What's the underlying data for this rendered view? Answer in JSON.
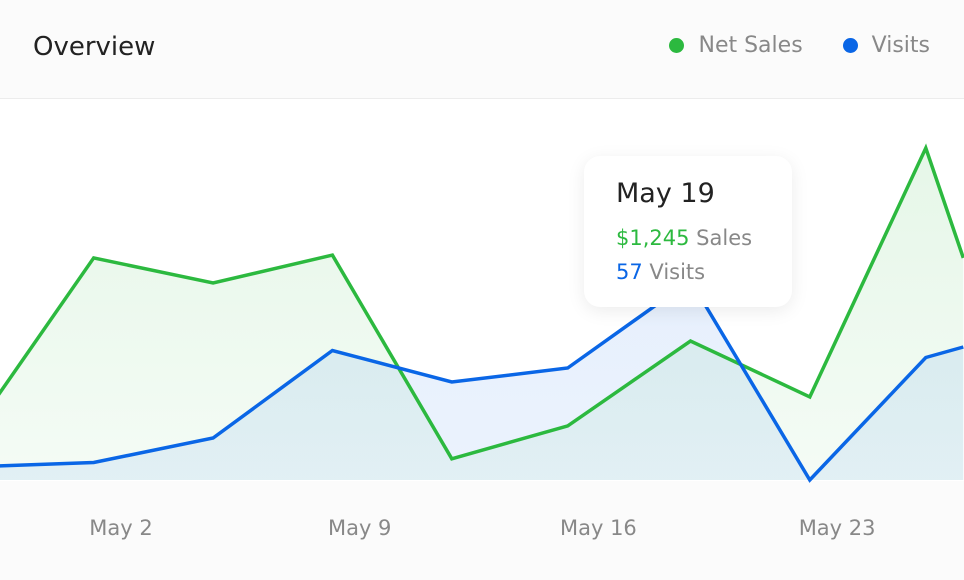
{
  "header": {
    "title": "Overview"
  },
  "chart_data": {
    "type": "area",
    "title": "Overview",
    "x_unit": "day of May",
    "x": [
      -1.6,
      1.2,
      4.7,
      8.2,
      11.7,
      15.1,
      18.7,
      22.2,
      25.6,
      26.7
    ],
    "tick_labels": [
      {
        "x": 2,
        "label": "May 2"
      },
      {
        "x": 9,
        "label": "May 9"
      },
      {
        "x": 16,
        "label": "May 16"
      },
      {
        "x": 23,
        "label": "May 23"
      }
    ],
    "series": [
      {
        "name": "Net Sales",
        "color": "#2cb93f",
        "values": [
          760,
          1990,
          1765,
          2015,
          190,
          485,
          1245,
          745,
          2975,
          1990
        ]
      },
      {
        "name": "Visits",
        "color": "#0a66e6",
        "values": [
          4,
          5,
          12,
          37,
          28,
          32,
          57,
          0,
          35,
          38
        ]
      }
    ],
    "legend_position": "top-right",
    "grid": false
  },
  "tooltip": {
    "date": "May 19",
    "sales_value": "$1,245",
    "sales_label": "Sales",
    "visits_value": "57",
    "visits_label": "Visits"
  }
}
